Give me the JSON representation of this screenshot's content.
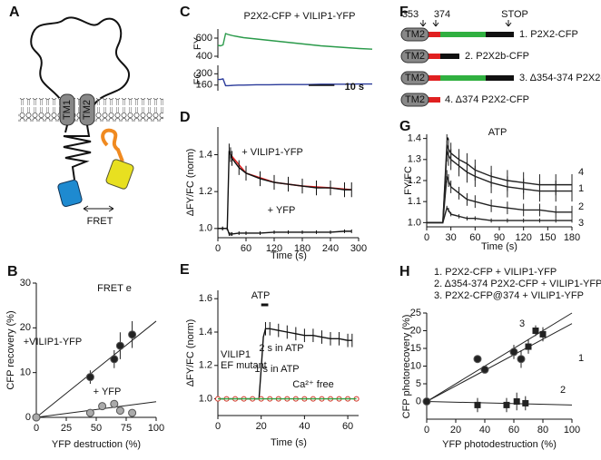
{
  "panel_a": {
    "panel": "A",
    "tm": [
      "TM1",
      "TM2"
    ],
    "fret": "FRET"
  },
  "panel_f": {
    "panel": "F",
    "positions": [
      "353",
      "374"
    ],
    "stop": "STOP",
    "constructs": [
      {
        "tm": "TM2",
        "label": "1. P2X2-CFP"
      },
      {
        "tm": "TM2",
        "label": "2. P2X2b-CFP"
      },
      {
        "tm": "TM2",
        "label": "3. Δ354-374 P2X2-CFP"
      },
      {
        "tm": "TM2",
        "label": "4. Δ374 P2X2-CFP"
      }
    ]
  },
  "chart_data": [
    {
      "panel": "B",
      "type": "scatter",
      "xlabel": "YFP destruction (%)",
      "ylabel": "CFP recovery (%)",
      "xlim": [
        0,
        100
      ],
      "ylim": [
        0,
        30
      ],
      "xticks": [
        0,
        25,
        50,
        75,
        100
      ],
      "yticks": [
        0,
        10,
        20,
        30
      ],
      "series": [
        {
          "name": "+VILIP1-YFP",
          "color": "#222222",
          "marker": "circle",
          "x": [
            0,
            45,
            65,
            70,
            80
          ],
          "values": [
            0,
            9,
            13,
            16,
            18.5
          ],
          "errors": [
            0,
            1.5,
            2,
            3,
            3
          ]
        },
        {
          "name": "+ YFP",
          "color": "#aaaaaa",
          "marker": "circle",
          "x": [
            0,
            45,
            55,
            65,
            70,
            80
          ],
          "values": [
            0,
            1,
            2.5,
            3,
            1.5,
            1
          ],
          "errors": [
            0,
            0.5,
            0.5,
            0.7,
            0.5,
            0.5
          ]
        }
      ],
      "fits": [
        {
          "color": "#222222",
          "x": [
            0,
            100
          ],
          "values": [
            0,
            21.5
          ]
        },
        {
          "color": "#222222",
          "x": [
            0,
            100
          ],
          "values": [
            0,
            3.5
          ]
        }
      ],
      "annotations": [
        "FRET e"
      ]
    },
    {
      "panel": "C",
      "type": "line",
      "title": "P2X2-CFP + VILIP1-YFP",
      "ylabel": "FY",
      "xlim": [
        0,
        60
      ],
      "ylim": [
        380,
        700
      ],
      "yticks": [
        400,
        600
      ],
      "x": [
        0,
        1,
        2,
        3,
        4,
        6,
        8,
        10,
        15,
        20,
        25,
        30,
        35,
        40,
        45,
        50,
        55,
        60
      ],
      "series": [
        {
          "color": "#2a9a4a",
          "values": [
            520,
            515,
            525,
            650,
            640,
            625,
            615,
            605,
            590,
            575,
            560,
            545,
            530,
            515,
            505,
            495,
            485,
            478
          ]
        }
      ]
    },
    {
      "type": "line",
      "ylabel": "FC",
      "xlim": [
        0,
        60
      ],
      "ylim": [
        140,
        230
      ],
      "yticks": [
        160,
        200
      ],
      "x": [
        0,
        1,
        2,
        3,
        4,
        6,
        8,
        10,
        15,
        20,
        25,
        30,
        35,
        40,
        45,
        50,
        55,
        60
      ],
      "series": [
        {
          "color": "#2a3a9a",
          "values": [
            180,
            180,
            182,
            158,
            158,
            159,
            160,
            160,
            161,
            161,
            162,
            162,
            162,
            163,
            163,
            163,
            164,
            164
          ]
        }
      ],
      "scalebar": {
        "value": 10,
        "label": "10 s"
      }
    },
    {
      "panel": "D",
      "type": "line",
      "xlabel": "Time (s)",
      "ylabel": "ΔFY/FC (norm)",
      "xlim": [
        0,
        300
      ],
      "ylim": [
        0.95,
        1.55
      ],
      "xticks": [
        0,
        60,
        120,
        180,
        240,
        300
      ],
      "yticks": [
        {
          "value": 1,
          "label": "1.0"
        },
        1.2,
        1.4
      ],
      "x": [
        0,
        10,
        20,
        24,
        27,
        30,
        45,
        60,
        90,
        120,
        150,
        180,
        210,
        240,
        270,
        285
      ],
      "series": [
        {
          "name": "+ VILIP1-YFP",
          "color": "#111111",
          "values": [
            1,
            1,
            1,
            1.42,
            1.4,
            1.38,
            1.33,
            1.3,
            1.27,
            1.25,
            1.24,
            1.23,
            1.22,
            1.22,
            1.21,
            1.21
          ],
          "errors": [
            0.01,
            0.01,
            0.01,
            0.04,
            0.04,
            0.04,
            0.04,
            0.04,
            0.04,
            0.04,
            0.04,
            0.04,
            0.04,
            0.04,
            0.04,
            0.04
          ]
        },
        {
          "name": "+ YFP",
          "color": "#111111",
          "values": [
            1,
            1,
            1,
            0.97,
            0.97,
            0.97,
            0.975,
            0.975,
            0.975,
            0.98,
            0.98,
            0.98,
            0.98,
            0.98,
            0.985,
            0.985
          ],
          "errors": [
            0.01,
            0.01,
            0.01,
            0.01,
            0.01,
            0.01,
            0.01,
            0.01,
            0.01,
            0.01,
            0.01,
            0.01,
            0.01,
            0.01,
            0.01,
            0.01
          ]
        }
      ],
      "fits": [
        {
          "color": "#e02020",
          "x": [
            27,
            60,
            120,
            180,
            240,
            285
          ],
          "values": [
            1.4,
            1.3,
            1.25,
            1.23,
            1.22,
            1.21
          ]
        }
      ]
    },
    {
      "panel": "E",
      "type": "line",
      "xlabel": "Time (s)",
      "ylabel": "ΔFY/FC (norm)",
      "xlim": [
        0,
        65
      ],
      "ylim": [
        0.9,
        1.65
      ],
      "xticks": [
        0,
        20,
        40,
        60
      ],
      "yticks": [
        {
          "value": 1,
          "label": "1.0"
        },
        1.2,
        1.4,
        1.6
      ],
      "series": [
        {
          "color": "#111111",
          "x": [
            0,
            5,
            10,
            15,
            19,
            20,
            21,
            22,
            24,
            28,
            32,
            36,
            40,
            44,
            48,
            52,
            56,
            60,
            62
          ],
          "values": [
            1,
            1,
            1,
            1,
            1,
            1.18,
            1.37,
            1.42,
            1.42,
            1.41,
            1.4,
            1.39,
            1.38,
            1.38,
            1.37,
            1.36,
            1.36,
            1.35,
            1.35
          ],
          "errors": [
            0,
            0,
            0,
            0,
            0,
            0,
            0,
            0.04,
            0.04,
            0.04,
            0.04,
            0.04,
            0.04,
            0.04,
            0.04,
            0.04,
            0.04,
            0.04,
            0.04
          ]
        },
        {
          "color": "#d03020",
          "marker": "open-circle",
          "x": [
            0,
            4,
            8,
            12,
            16,
            20,
            24,
            28,
            32,
            36,
            40,
            44,
            48,
            52,
            56,
            60,
            64
          ],
          "values": [
            1,
            1,
            1,
            1,
            1,
            1,
            1,
            1,
            1,
            1,
            1,
            1,
            1,
            1,
            1,
            1,
            1
          ]
        },
        {
          "color": "#30a040",
          "x": [
            0,
            10,
            20,
            30,
            40,
            50,
            60,
            64
          ],
          "values": [
            1,
            1,
            1,
            1,
            1,
            1,
            1,
            1
          ]
        }
      ],
      "annotations": [
        "ATP",
        "2 s in ATP",
        "1 s in ATP",
        "VILIP1",
        "EF mutant",
        "Ca²⁺ free"
      ]
    },
    {
      "panel": "G",
      "type": "line",
      "xlabel": "Time (s)",
      "ylabel": "FY/FC",
      "xlim": [
        0,
        180
      ],
      "ylim": [
        0.98,
        1.42
      ],
      "xticks": [
        0,
        30,
        60,
        90,
        120,
        150,
        180
      ],
      "yticks": [
        {
          "value": 1,
          "label": "1.0"
        },
        1.1,
        1.2,
        1.3,
        1.4
      ],
      "x": [
        0,
        10,
        20,
        25,
        27,
        30,
        40,
        50,
        60,
        80,
        100,
        120,
        140,
        160,
        180
      ],
      "series": [
        {
          "name": "4",
          "color": "#222222",
          "values": [
            1,
            1,
            1,
            1.37,
            1.35,
            1.33,
            1.3,
            1.28,
            1.25,
            1.22,
            1.2,
            1.19,
            1.18,
            1.18,
            1.18
          ],
          "errors": [
            0,
            0,
            0,
            0.05,
            0.05,
            0.05,
            0.05,
            0.05,
            0.05,
            0.05,
            0.05,
            0.05,
            0.05,
            0.05,
            0.05
          ]
        },
        {
          "name": "1",
          "color": "#222222",
          "values": [
            1,
            1,
            1,
            1.34,
            1.32,
            1.3,
            1.27,
            1.24,
            1.22,
            1.19,
            1.17,
            1.16,
            1.15,
            1.15,
            1.15
          ],
          "errors": [
            0,
            0,
            0,
            0.05,
            0.05,
            0.05,
            0.05,
            0.05,
            0.05,
            0.05,
            0.05,
            0.05,
            0.05,
            0.05,
            0.05
          ]
        },
        {
          "name": "2",
          "color": "#222222",
          "values": [
            1,
            1,
            1,
            1.22,
            1.2,
            1.17,
            1.14,
            1.11,
            1.1,
            1.08,
            1.07,
            1.06,
            1.06,
            1.05,
            1.05
          ],
          "errors": [
            0,
            0,
            0,
            0.03,
            0.03,
            0.03,
            0.03,
            0.03,
            0.03,
            0.03,
            0.03,
            0.03,
            0.03,
            0.03,
            0.03
          ]
        },
        {
          "name": "3",
          "color": "#222222",
          "values": [
            1,
            1,
            1,
            1.07,
            1.06,
            1.04,
            1.03,
            1.02,
            1.02,
            1.01,
            1.01,
            1.01,
            1.01,
            1.01,
            1.01
          ],
          "errors": [
            0,
            0,
            0,
            0.01,
            0.01,
            0.01,
            0.01,
            0.01,
            0.01,
            0.01,
            0.01,
            0.01,
            0.01,
            0.01,
            0.01
          ]
        }
      ],
      "annotations": [
        "ATP"
      ]
    },
    {
      "panel": "H",
      "type": "scatter",
      "xlabel": "YFP photodestruction (%)",
      "ylabel": "CFP photorecovery (%)",
      "xlim": [
        0,
        100
      ],
      "ylim": [
        -5,
        25
      ],
      "xticks": [
        0,
        20,
        40,
        60,
        80,
        100
      ],
      "yticks": [
        0,
        5,
        10,
        15,
        20,
        25
      ],
      "legend": [
        "1. P2X2-CFP + VILIP1-YFP",
        "2. Δ354-374 P2X2-CFP + VILIP1-YFP",
        "3. P2X2-CFP@374 + VILIP1-YFP"
      ],
      "series": [
        {
          "name": "1",
          "color": "#222222",
          "marker": "circle",
          "x": [
            0,
            35,
            40,
            60,
            65
          ],
          "values": [
            0,
            12,
            9,
            14,
            12
          ],
          "errors": [
            0,
            1,
            1,
            2,
            2.5
          ]
        },
        {
          "name": "2",
          "color": "#222222",
          "marker": "square",
          "x": [
            35,
            55,
            62,
            68
          ],
          "values": [
            -1,
            -1,
            0,
            -0.5
          ],
          "errors": [
            2,
            2,
            2.5,
            2
          ]
        },
        {
          "name": "3",
          "color": "#222222",
          "marker": "square",
          "x": [
            70,
            75,
            80
          ],
          "values": [
            15.5,
            20,
            19
          ],
          "errors": [
            2,
            1.5,
            2
          ]
        }
      ],
      "fits": [
        {
          "color": "#222222",
          "x": [
            0,
            100
          ],
          "values": [
            0,
            22
          ]
        },
        {
          "color": "#222222",
          "x": [
            0,
            100
          ],
          "values": [
            0,
            -1
          ]
        },
        {
          "color": "#222222",
          "x": [
            0,
            100
          ],
          "values": [
            0,
            25
          ]
        }
      ]
    }
  ]
}
